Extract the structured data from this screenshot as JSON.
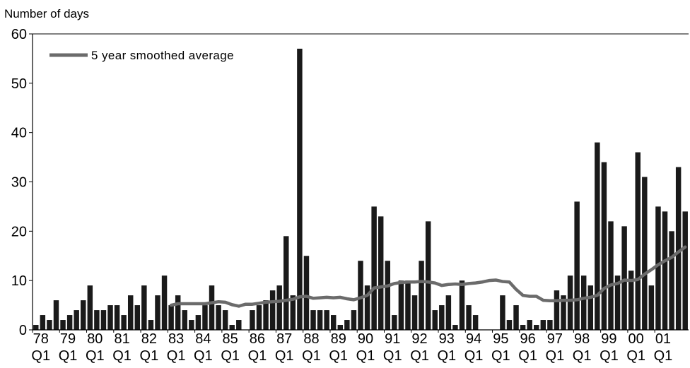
{
  "chart_data": {
    "type": "bar",
    "ylabel": "Number of days",
    "ylim": [
      0,
      60
    ],
    "yticks": [
      0,
      10,
      20,
      30,
      40,
      50,
      60
    ],
    "bar_color": "#1a1a1a",
    "line_color": "#6b6b6b",
    "legend": {
      "label": "5 year smoothed average",
      "position": "top-left"
    },
    "year_labels": [
      "78",
      "79",
      "80",
      "81",
      "82",
      "83",
      "84",
      "85",
      "86",
      "87",
      "88",
      "89",
      "90",
      "91",
      "92",
      "93",
      "94",
      "95",
      "96",
      "97",
      "98",
      "99",
      "00",
      "01"
    ],
    "quarter_label": "Q1",
    "series": [
      {
        "type": "bar",
        "values": [
          1,
          3,
          2,
          6,
          2,
          3,
          4,
          6,
          9,
          4,
          4,
          5,
          5,
          3,
          7,
          5,
          9,
          2,
          7,
          11,
          5,
          7,
          4,
          2,
          3,
          5,
          9,
          5,
          4,
          1,
          2,
          0,
          4,
          5,
          6,
          8,
          9,
          19,
          7,
          57,
          15,
          4,
          4,
          4,
          3,
          1,
          2,
          4,
          14,
          9,
          25,
          23,
          14,
          3,
          10,
          10,
          7,
          14,
          22,
          4,
          5,
          7,
          1,
          10,
          5,
          3,
          0,
          0,
          0,
          7,
          2,
          5,
          1,
          2,
          1,
          2,
          2,
          8,
          7,
          11,
          26,
          11,
          9,
          38,
          34,
          22,
          11,
          21,
          12,
          36,
          31,
          9,
          25,
          24,
          20,
          33,
          24
        ]
      },
      {
        "type": "line",
        "values": [
          null,
          null,
          null,
          null,
          null,
          null,
          null,
          null,
          null,
          null,
          null,
          null,
          null,
          null,
          null,
          null,
          null,
          null,
          null,
          null,
          5,
          5.3,
          5.3,
          5.3,
          5.3,
          5.3,
          5.5,
          5.7,
          5.6,
          5.1,
          4.8,
          5.2,
          5.2,
          5.4,
          5.6,
          5.7,
          5.8,
          6.0,
          6.2,
          6.7,
          6.8,
          6.4,
          6.5,
          6.6,
          6.5,
          6.6,
          6.3,
          6.1,
          6.5,
          7.0,
          8.5,
          8.7,
          8.9,
          9.4,
          9.6,
          9.7,
          9.7,
          9.8,
          9.7,
          9.5,
          9.0,
          9.2,
          9.3,
          9.2,
          9.4,
          9.5,
          9.7,
          10.0,
          10.1,
          9.8,
          9.7,
          8.2,
          7.0,
          6.8,
          6.8,
          6.0,
          5.9,
          5.9,
          6.0,
          6.0,
          6.1,
          6.4,
          6.6,
          7.0,
          8.4,
          9.1,
          9.4,
          10.1,
          10.0,
          10.2,
          11.3,
          12.2,
          13.2,
          14.0,
          14.7,
          15.8,
          16.8
        ]
      }
    ]
  }
}
